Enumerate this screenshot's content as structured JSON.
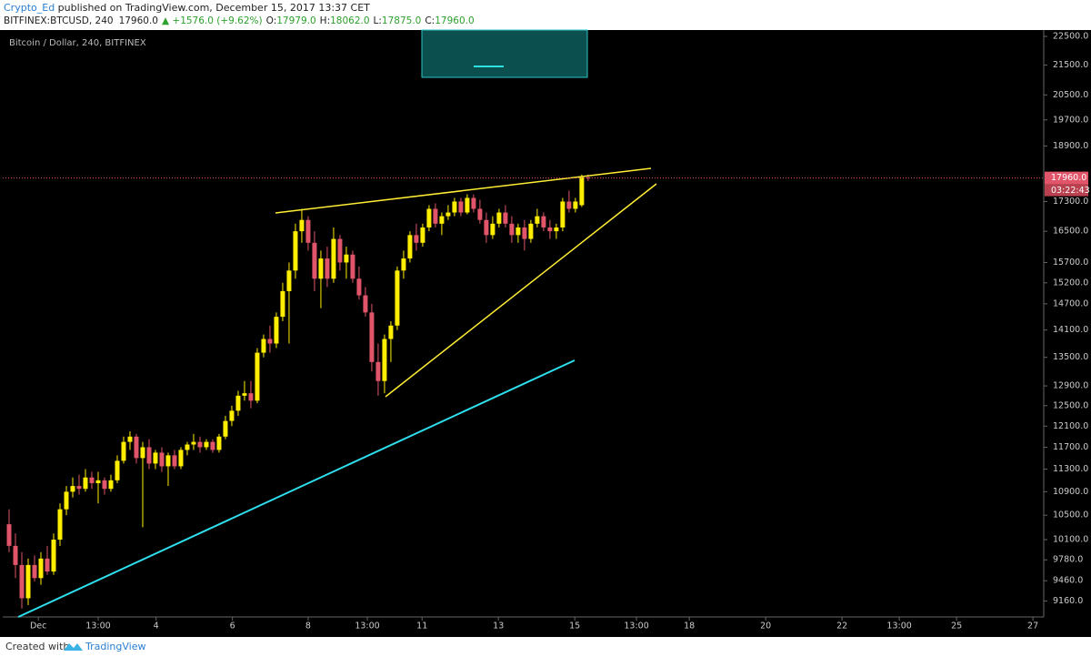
{
  "header": {
    "author": "Crypto_Ed",
    "published": " published on TradingView.com, December 15, 2017 13:37 CET",
    "symbol": "BITFINEX:BTCUSD, 240",
    "last": "17960.0",
    "change": "▲ +1576.0 (+9.62%)",
    "ohlc": [
      {
        "label": "O:",
        "value": "17979.0"
      },
      {
        "label": "H:",
        "value": "18062.0"
      },
      {
        "label": "L:",
        "value": "17875.0"
      },
      {
        "label": "C:",
        "value": "17960.0"
      }
    ]
  },
  "footer": {
    "created": "Created with",
    "brand": "TradingView"
  },
  "chart_data": {
    "type": "candlestick",
    "title": "Bitcoin / Dollar, 240, BITFINEX",
    "log_scale": true,
    "up_color": "#ffee00",
    "down_color": "#e05569",
    "ylim": [
      8930,
      22730
    ],
    "xlim": [
      -1,
      162.6
    ],
    "yticks": [
      {
        "value": 22500,
        "label": "22500.0"
      },
      {
        "value": 21500,
        "label": "21500.0"
      },
      {
        "value": 20500,
        "label": "20500.0"
      },
      {
        "value": 19700,
        "label": "19700.0"
      },
      {
        "value": 18900,
        "label": "18900.0"
      },
      {
        "value": 17300,
        "label": "17300.0"
      },
      {
        "value": 16500,
        "label": "16500.0"
      },
      {
        "value": 15700,
        "label": "15700.0"
      },
      {
        "value": 15200,
        "label": "15200.0"
      },
      {
        "value": 14700,
        "label": "14700.0"
      },
      {
        "value": 14100,
        "label": "14100.0"
      },
      {
        "value": 13500,
        "label": "13500.0"
      },
      {
        "value": 12900,
        "label": "12900.0"
      },
      {
        "value": 12500,
        "label": "12500.0"
      },
      {
        "value": 12100,
        "label": "12100.0"
      },
      {
        "value": 11700,
        "label": "11700.0"
      },
      {
        "value": 11300,
        "label": "11300.0"
      },
      {
        "value": 10900,
        "label": "10900.0"
      },
      {
        "value": 10500,
        "label": "10500.0"
      },
      {
        "value": 10100,
        "label": "10100.0"
      },
      {
        "value": 9780,
        "label": "9780.0"
      },
      {
        "value": 9460,
        "label": "9460.0"
      },
      {
        "value": 9160,
        "label": "9160.0"
      }
    ],
    "xticks": [
      {
        "value": 4.6,
        "label": "Dec"
      },
      {
        "value": 14,
        "label": "13:00"
      },
      {
        "value": 23.1,
        "label": "4"
      },
      {
        "value": 35.1,
        "label": "6"
      },
      {
        "value": 47,
        "label": "8"
      },
      {
        "value": 56.3,
        "label": "13:00"
      },
      {
        "value": 64.9,
        "label": "11"
      },
      {
        "value": 76.9,
        "label": "13"
      },
      {
        "value": 88.9,
        "label": "15"
      },
      {
        "value": 98.6,
        "label": "13:00"
      },
      {
        "value": 106.9,
        "label": "18"
      },
      {
        "value": 118.9,
        "label": "20"
      },
      {
        "value": 130.9,
        "label": "22"
      },
      {
        "value": 139.9,
        "label": "13:00"
      },
      {
        "value": 148.9,
        "label": "25"
      },
      {
        "value": 160.9,
        "label": "27"
      }
    ],
    "last_price": {
      "value": 17960,
      "label": "17960.0"
    },
    "countdown": "03:22:43",
    "candles": [
      [
        10350,
        10600,
        9900,
        10000
      ],
      [
        10000,
        10200,
        9500,
        9700
      ],
      [
        9700,
        9900,
        9050,
        9200
      ],
      [
        9200,
        9800,
        9100,
        9700
      ],
      [
        9700,
        9850,
        9450,
        9500
      ],
      [
        9500,
        9900,
        9400,
        9800
      ],
      [
        9800,
        10000,
        9550,
        9600
      ],
      [
        9600,
        10200,
        9550,
        10100
      ],
      [
        10100,
        10700,
        10000,
        10600
      ],
      [
        10600,
        11000,
        10500,
        10900
      ],
      [
        10900,
        11150,
        10800,
        11000
      ],
      [
        11000,
        11200,
        10850,
        10950
      ],
      [
        10950,
        11300,
        10900,
        11150
      ],
      [
        11150,
        11250,
        10950,
        11050
      ],
      [
        11050,
        11250,
        10700,
        11100
      ],
      [
        11100,
        11150,
        10850,
        10950
      ],
      [
        10950,
        11200,
        10900,
        11100
      ],
      [
        11100,
        11550,
        11050,
        11450
      ],
      [
        11450,
        11900,
        11400,
        11800
      ],
      [
        11800,
        12000,
        11650,
        11900
      ],
      [
        11900,
        11950,
        11400,
        11500
      ],
      [
        11500,
        11800,
        10300,
        11700
      ],
      [
        11700,
        11850,
        11300,
        11400
      ],
      [
        11400,
        11650,
        11300,
        11600
      ],
      [
        11600,
        11700,
        11250,
        11350
      ],
      [
        11350,
        11600,
        11000,
        11550
      ],
      [
        11550,
        11650,
        11300,
        11350
      ],
      [
        11350,
        11700,
        11300,
        11650
      ],
      [
        11650,
        11800,
        11550,
        11750
      ],
      [
        11750,
        11950,
        11650,
        11800
      ],
      [
        11800,
        11900,
        11600,
        11700
      ],
      [
        11700,
        11850,
        11650,
        11800
      ],
      [
        11800,
        11850,
        11600,
        11650
      ],
      [
        11650,
        11950,
        11600,
        11900
      ],
      [
        11900,
        12300,
        11850,
        12200
      ],
      [
        12200,
        12500,
        12100,
        12400
      ],
      [
        12400,
        12800,
        12300,
        12700
      ],
      [
        12700,
        13000,
        12600,
        12750
      ],
      [
        12750,
        13000,
        12450,
        12600
      ],
      [
        12600,
        13700,
        12550,
        13600
      ],
      [
        13600,
        14000,
        13500,
        13900
      ],
      [
        13900,
        14200,
        13600,
        13800
      ],
      [
        13800,
        14500,
        13700,
        14400
      ],
      [
        14400,
        15200,
        14300,
        15000
      ],
      [
        15000,
        15700,
        13800,
        15500
      ],
      [
        15500,
        16700,
        15300,
        16500
      ],
      [
        16500,
        17100,
        16200,
        16800
      ],
      [
        16800,
        16900,
        16000,
        16200
      ],
      [
        16200,
        16500,
        15000,
        15300
      ],
      [
        15300,
        16000,
        14600,
        15800
      ],
      [
        15800,
        16100,
        15100,
        15300
      ],
      [
        15300,
        16600,
        15200,
        16300
      ],
      [
        16300,
        16400,
        15500,
        15700
      ],
      [
        15700,
        16100,
        15300,
        15900
      ],
      [
        15900,
        16000,
        15200,
        15300
      ],
      [
        15300,
        15600,
        14800,
        14900
      ],
      [
        14900,
        15100,
        14400,
        14500
      ],
      [
        14500,
        14700,
        13200,
        13400
      ],
      [
        13400,
        13800,
        12700,
        13000
      ],
      [
        13000,
        14000,
        12750,
        13900
      ],
      [
        13900,
        14300,
        13400,
        14200
      ],
      [
        14200,
        15600,
        14100,
        15500
      ],
      [
        15500,
        16000,
        15300,
        15800
      ],
      [
        15800,
        16500,
        15700,
        16400
      ],
      [
        16400,
        16700,
        16000,
        16200
      ],
      [
        16200,
        16700,
        16100,
        16600
      ],
      [
        16600,
        17200,
        16500,
        17100
      ],
      [
        17100,
        17250,
        16600,
        16700
      ],
      [
        16700,
        17000,
        16400,
        16900
      ],
      [
        16900,
        17200,
        16800,
        17000
      ],
      [
        17000,
        17400,
        16900,
        17300
      ],
      [
        17300,
        17400,
        16900,
        17000
      ],
      [
        17000,
        17500,
        16950,
        17400
      ],
      [
        17400,
        17500,
        17000,
        17100
      ],
      [
        17100,
        17350,
        16700,
        16800
      ],
      [
        16800,
        17000,
        16200,
        16400
      ],
      [
        16400,
        16900,
        16300,
        16700
      ],
      [
        16700,
        17100,
        16600,
        17000
      ],
      [
        17000,
        17200,
        16600,
        16700
      ],
      [
        16700,
        16900,
        16200,
        16400
      ],
      [
        16400,
        16700,
        16200,
        16600
      ],
      [
        16600,
        16800,
        16000,
        16300
      ],
      [
        16300,
        16800,
        16200,
        16700
      ],
      [
        16700,
        17100,
        16600,
        16900
      ],
      [
        16900,
        17000,
        16500,
        16600
      ],
      [
        16600,
        16800,
        16300,
        16500
      ],
      [
        16500,
        16700,
        16300,
        16600
      ],
      [
        16600,
        17400,
        16500,
        17300
      ],
      [
        17300,
        17600,
        17000,
        17100
      ],
      [
        17100,
        17400,
        17000,
        17300
      ],
      [
        17200,
        18060,
        17150,
        17979
      ],
      [
        17979,
        18062,
        17875,
        17960
      ]
    ]
  }
}
